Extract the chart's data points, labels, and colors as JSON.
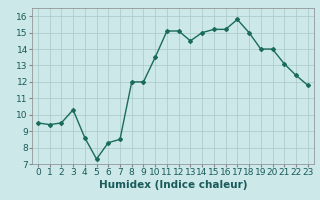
{
  "title": "",
  "xlabel": "Humidex (Indice chaleur)",
  "ylabel": "",
  "x": [
    0,
    1,
    2,
    3,
    4,
    5,
    6,
    7,
    8,
    9,
    10,
    11,
    12,
    13,
    14,
    15,
    16,
    17,
    18,
    19,
    20,
    21,
    22,
    23
  ],
  "y": [
    9.5,
    9.4,
    9.5,
    10.3,
    8.6,
    7.3,
    8.3,
    8.5,
    12.0,
    12.0,
    13.5,
    15.1,
    15.1,
    14.5,
    15.0,
    15.2,
    15.2,
    15.8,
    15.0,
    14.0,
    14.0,
    13.1,
    12.4,
    11.8
  ],
  "line_color": "#1a6b5a",
  "marker": "D",
  "markersize": 2.0,
  "background_color": "#cce8e8",
  "grid_color": "#aac8c8",
  "ylim": [
    7,
    16.5
  ],
  "yticks": [
    7,
    8,
    9,
    10,
    11,
    12,
    13,
    14,
    15,
    16
  ],
  "xticks": [
    0,
    1,
    2,
    3,
    4,
    5,
    6,
    7,
    8,
    9,
    10,
    11,
    12,
    13,
    14,
    15,
    16,
    17,
    18,
    19,
    20,
    21,
    22,
    23
  ],
  "tick_fontsize": 6.5,
  "xlabel_fontsize": 7.5,
  "linewidth": 1.0
}
